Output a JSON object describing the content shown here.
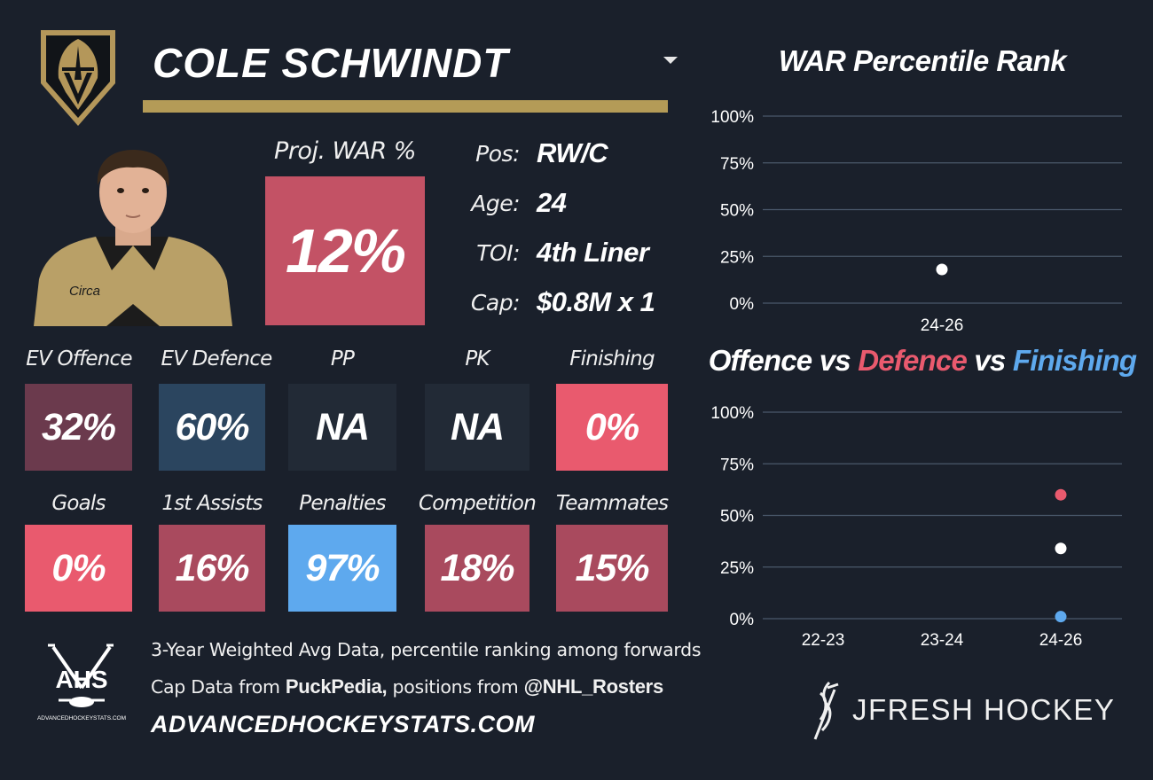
{
  "player": {
    "name": "COLE SCHWINDT",
    "proj_war_label": "Proj. WAR %",
    "proj_war_value": "12%",
    "proj_war_color": "#c35265"
  },
  "info": [
    {
      "key": "Pos:",
      "value": "RW/C"
    },
    {
      "key": "Age:",
      "value": "24"
    },
    {
      "key": "TOI:",
      "value": "4th Liner"
    },
    {
      "key": "Cap:",
      "value": "$0.8M x 1"
    }
  ],
  "tiles_row1": [
    {
      "label": "EV Offence",
      "value": "32%",
      "color": "#6b3a4d"
    },
    {
      "label": "EV Defence",
      "value": "60%",
      "color": "#2b455f"
    },
    {
      "label": "PP",
      "value": "NA",
      "color": "#222a36"
    },
    {
      "label": "PK",
      "value": "NA",
      "color": "#222a36"
    },
    {
      "label": "Finishing",
      "value": "0%",
      "color": "#e95a6e"
    }
  ],
  "tiles_row2": [
    {
      "label": "Goals",
      "value": "0%",
      "color": "#e95a6e"
    },
    {
      "label": "1st Assists",
      "value": "16%",
      "color": "#a94a5e"
    },
    {
      "label": "Penalties",
      "value": "97%",
      "color": "#5ea9ee"
    },
    {
      "label": "Competition",
      "value": "18%",
      "color": "#a94a5e"
    },
    {
      "label": "Teammates",
      "value": "15%",
      "color": "#a94a5e"
    }
  ],
  "footer": {
    "line1": "3-Year Weighted Avg Data, percentile ranking among forwards",
    "line2_prefix": "Cap Data from ",
    "line2_source1": "PuckPedia,",
    "line2_mid": " positions from ",
    "line2_source2": "@NHL_Rosters",
    "website": "ADVANCEDHOCKEYSTATS.COM",
    "ahs_logo_text": "AHS",
    "ahs_logo_sub": "ADVANCEDHOCKEYSTATS.COM",
    "brand": "JFRESH HOCKEY"
  },
  "chart_data": [
    {
      "type": "scatter",
      "title": "WAR Percentile Rank",
      "categories": [
        "24-26"
      ],
      "ylim": [
        0,
        100
      ],
      "yticks": [
        "0%",
        "25%",
        "50%",
        "75%",
        "100%"
      ],
      "grid": true,
      "series": [
        {
          "values": [
            18
          ],
          "color": "#ffffff"
        }
      ]
    },
    {
      "type": "scatter",
      "title_parts": [
        {
          "text": "Offence",
          "color": "#ffffff"
        },
        {
          "text": " vs ",
          "color": "#ffffff"
        },
        {
          "text": "Defence",
          "color": "#e95a6e"
        },
        {
          "text": " vs ",
          "color": "#ffffff"
        },
        {
          "text": "Finishing",
          "color": "#5ea9ee"
        }
      ],
      "categories": [
        "22-23",
        "23-24",
        "24-26"
      ],
      "ylim": [
        0,
        100
      ],
      "yticks": [
        "0%",
        "25%",
        "50%",
        "75%",
        "100%"
      ],
      "grid": true,
      "series": [
        {
          "name": "Offence",
          "values": [
            null,
            null,
            34
          ],
          "color": "#ffffff"
        },
        {
          "name": "Defence",
          "values": [
            null,
            null,
            60
          ],
          "color": "#e95a6e"
        },
        {
          "name": "Finishing",
          "values": [
            null,
            null,
            1
          ],
          "color": "#5ea9ee"
        }
      ]
    }
  ]
}
